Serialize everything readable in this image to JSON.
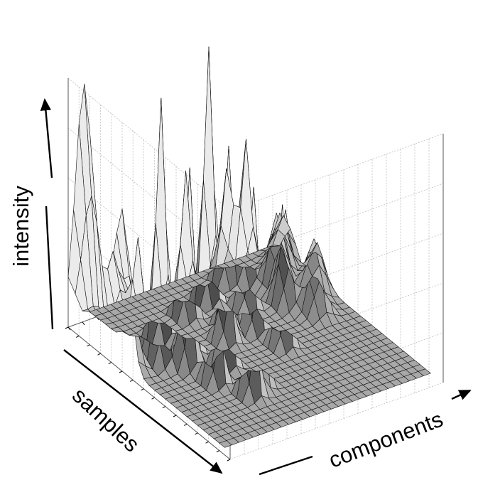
{
  "chart_data": {
    "type": "surface",
    "xlabel": "components",
    "ylabel": "samples",
    "zlabel": "intensity",
    "grid": true,
    "colors": {
      "surface_light": "#f4f4f4",
      "surface_dark": "#3a3a3a",
      "mesh": "#111111",
      "grid": "#bdbdbd",
      "axis": "#000000"
    },
    "x_count": 30,
    "y_count": 30,
    "baseline": 0.03,
    "peaks": [
      {
        "x": 0,
        "y": 3,
        "height": 1.0,
        "spread_x": 0.9,
        "spread_y": 1.6
      },
      {
        "x": 0,
        "y": 10,
        "height": 0.62,
        "spread_x": 0.9,
        "spread_y": 1.4
      },
      {
        "x": 1,
        "y": 7,
        "height": 0.33,
        "spread_x": 1.0,
        "spread_y": 1.0
      },
      {
        "x": 3,
        "y": 9,
        "height": 0.45,
        "spread_x": 0.7,
        "spread_y": 0.9
      },
      {
        "x": 4,
        "y": 12,
        "height": 0.58,
        "spread_x": 0.7,
        "spread_y": 0.9
      },
      {
        "x": 6,
        "y": 14,
        "height": 0.52,
        "spread_x": 0.7,
        "spread_y": 0.9
      },
      {
        "x": 7,
        "y": 8,
        "height": 0.96,
        "spread_x": 0.6,
        "spread_y": 0.8
      },
      {
        "x": 7,
        "y": 18,
        "height": 0.6,
        "spread_x": 0.6,
        "spread_y": 0.8
      },
      {
        "x": 8,
        "y": 12,
        "height": 0.74,
        "spread_x": 0.6,
        "spread_y": 0.8
      },
      {
        "x": 9,
        "y": 22,
        "height": 0.62,
        "spread_x": 0.6,
        "spread_y": 0.8
      },
      {
        "x": 10,
        "y": 16,
        "height": 0.72,
        "spread_x": 0.6,
        "spread_y": 0.8
      },
      {
        "x": 11,
        "y": 21,
        "height": 0.45,
        "spread_x": 0.6,
        "spread_y": 0.8
      },
      {
        "x": 12,
        "y": 6,
        "height": 0.58,
        "spread_x": 0.7,
        "spread_y": 0.8
      },
      {
        "x": 13,
        "y": 12,
        "height": 0.52,
        "spread_x": 0.6,
        "spread_y": 0.8
      },
      {
        "x": 15,
        "y": 10,
        "height": 0.72,
        "spread_x": 0.6,
        "spread_y": 0.8
      },
      {
        "x": 16,
        "y": 5,
        "height": 1.02,
        "spread_x": 0.6,
        "spread_y": 0.8
      },
      {
        "x": 17,
        "y": 12,
        "height": 0.57,
        "spread_x": 0.6,
        "spread_y": 0.8
      },
      {
        "x": 18,
        "y": 16,
        "height": 0.56,
        "spread_x": 0.6,
        "spread_y": 0.8
      },
      {
        "x": 19,
        "y": 8,
        "height": 0.55,
        "spread_x": 0.6,
        "spread_y": 0.8
      },
      {
        "x": 20,
        "y": 3,
        "height": 0.45,
        "spread_x": 0.8,
        "spread_y": 0.8
      },
      {
        "x": 22,
        "y": 4,
        "height": 0.56,
        "spread_x": 0.7,
        "spread_y": 0.8
      },
      {
        "x": 23,
        "y": 10,
        "height": 0.38,
        "spread_x": 0.8,
        "spread_y": 0.9
      },
      {
        "x": 24,
        "y": 7,
        "height": 0.3,
        "spread_x": 1.0,
        "spread_y": 1.0
      },
      {
        "x": 25,
        "y": 13,
        "height": 0.28,
        "spread_x": 0.9,
        "spread_y": 1.0
      },
      {
        "x": 26,
        "y": 5,
        "height": 0.24,
        "spread_x": 1.0,
        "spread_y": 1.0
      },
      {
        "x": 27,
        "y": 10,
        "height": 0.22,
        "spread_x": 1.0,
        "spread_y": 1.0
      },
      {
        "x": 28,
        "y": 3,
        "height": 0.18,
        "spread_x": 1.1,
        "spread_y": 1.0
      },
      {
        "x": 29,
        "y": 8,
        "height": 0.15,
        "spread_x": 1.1,
        "spread_y": 1.0
      }
    ]
  }
}
